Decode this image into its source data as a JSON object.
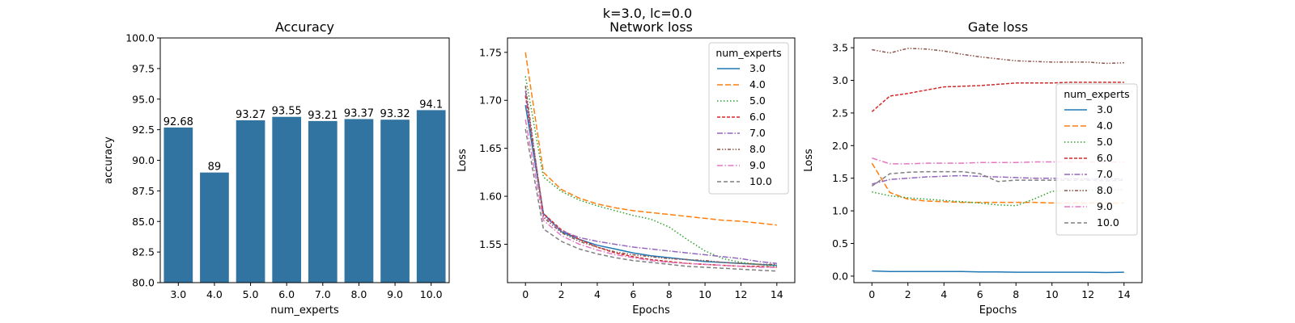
{
  "suptitle": "k=3.0, lc=0.0",
  "series_colors": {
    "3.0": "#1f77b4",
    "4.0": "#ff7f0e",
    "5.0": "#2ca02c",
    "6.0": "#d62728",
    "7.0": "#9467bd",
    "8.0": "#8c564b",
    "9.0": "#e377c2",
    "10.0": "#7f7f7f"
  },
  "bar_color": "#3274a1",
  "chart_data": [
    {
      "type": "bar",
      "title": "Accuracy",
      "xlabel": "num_experts",
      "ylabel": "accuracy",
      "ylim": [
        80,
        100
      ],
      "yticks": [
        "80.0",
        "82.5",
        "85.0",
        "87.5",
        "90.0",
        "92.5",
        "95.0",
        "97.5",
        "100.0"
      ],
      "categories": [
        "3.0",
        "4.0",
        "5.0",
        "6.0",
        "7.0",
        "8.0",
        "9.0",
        "10.0"
      ],
      "values": [
        92.68,
        89,
        93.27,
        93.55,
        93.21,
        93.37,
        93.32,
        94.1
      ],
      "data_labels": [
        "92.68",
        "89",
        "93.27",
        "93.55",
        "93.21",
        "93.37",
        "93.32",
        "94.1"
      ]
    },
    {
      "type": "line",
      "title": "Network loss",
      "xlabel": "Epochs",
      "ylabel": "Loss",
      "xlim": [
        -1,
        15
      ],
      "ylim": [
        1.51,
        1.765
      ],
      "xticks": [
        "0",
        "2",
        "4",
        "6",
        "8",
        "10",
        "12",
        "14"
      ],
      "yticks": [
        "1.55",
        "1.60",
        "1.65",
        "1.70",
        "1.75"
      ],
      "legend_title": "num_experts",
      "legend_position": "top-right",
      "x": [
        0,
        1,
        2,
        3,
        4,
        5,
        6,
        7,
        8,
        9,
        10,
        11,
        12,
        13,
        14
      ],
      "series": [
        {
          "name": "3.0",
          "values": [
            1.695,
            1.582,
            1.563,
            1.555,
            1.549,
            1.545,
            1.541,
            1.538,
            1.536,
            1.534,
            1.532,
            1.531,
            1.53,
            1.529,
            1.528
          ]
        },
        {
          "name": "4.0",
          "values": [
            1.75,
            1.625,
            1.607,
            1.598,
            1.592,
            1.588,
            1.585,
            1.583,
            1.581,
            1.579,
            1.577,
            1.575,
            1.574,
            1.572,
            1.57
          ]
        },
        {
          "name": "5.0",
          "values": [
            1.725,
            1.62,
            1.605,
            1.596,
            1.59,
            1.585,
            1.58,
            1.576,
            1.568,
            1.555,
            1.543,
            1.535,
            1.531,
            1.529,
            1.527
          ]
        },
        {
          "name": "6.0",
          "values": [
            1.705,
            1.582,
            1.565,
            1.555,
            1.547,
            1.541,
            1.537,
            1.534,
            1.532,
            1.53,
            1.529,
            1.528,
            1.527,
            1.527,
            1.526
          ]
        },
        {
          "name": "7.0",
          "values": [
            1.71,
            1.58,
            1.564,
            1.557,
            1.553,
            1.55,
            1.547,
            1.545,
            1.543,
            1.541,
            1.539,
            1.537,
            1.535,
            1.532,
            1.53
          ]
        },
        {
          "name": "8.0",
          "values": [
            1.715,
            1.578,
            1.562,
            1.553,
            1.547,
            1.542,
            1.539,
            1.537,
            1.535,
            1.534,
            1.533,
            1.531,
            1.53,
            1.529,
            1.529
          ]
        },
        {
          "name": "9.0",
          "values": [
            1.68,
            1.575,
            1.559,
            1.55,
            1.544,
            1.539,
            1.536,
            1.533,
            1.531,
            1.53,
            1.529,
            1.528,
            1.527,
            1.526,
            1.526
          ]
        },
        {
          "name": "10.0",
          "values": [
            1.67,
            1.566,
            1.553,
            1.545,
            1.54,
            1.536,
            1.533,
            1.531,
            1.529,
            1.527,
            1.526,
            1.525,
            1.524,
            1.523,
            1.522
          ]
        }
      ]
    },
    {
      "type": "line",
      "title": "Gate loss",
      "xlabel": "Epochs",
      "ylabel": "Loss",
      "xlim": [
        -1,
        15
      ],
      "ylim": [
        -0.1,
        3.65
      ],
      "xticks": [
        "0",
        "2",
        "4",
        "6",
        "8",
        "10",
        "12",
        "14"
      ],
      "yticks": [
        "0.0",
        "0.5",
        "1.0",
        "1.5",
        "2.0",
        "2.5",
        "3.0",
        "3.5"
      ],
      "legend_title": "num_experts",
      "legend_position": "center-right",
      "x": [
        0,
        1,
        2,
        3,
        4,
        5,
        6,
        7,
        8,
        9,
        10,
        11,
        12,
        13,
        14
      ],
      "series": [
        {
          "name": "3.0",
          "values": [
            0.08,
            0.07,
            0.07,
            0.07,
            0.07,
            0.07,
            0.065,
            0.065,
            0.06,
            0.06,
            0.06,
            0.06,
            0.06,
            0.055,
            0.06
          ]
        },
        {
          "name": "4.0",
          "values": [
            1.73,
            1.28,
            1.18,
            1.15,
            1.14,
            1.13,
            1.13,
            1.13,
            1.13,
            1.13,
            1.12,
            1.12,
            1.12,
            1.12,
            1.12
          ]
        },
        {
          "name": "5.0",
          "values": [
            1.29,
            1.23,
            1.2,
            1.18,
            1.16,
            1.14,
            1.12,
            1.09,
            1.08,
            1.18,
            1.3,
            1.31,
            1.32,
            1.32,
            1.33
          ]
        },
        {
          "name": "6.0",
          "values": [
            2.52,
            2.76,
            2.8,
            2.85,
            2.9,
            2.91,
            2.92,
            2.94,
            2.96,
            2.96,
            2.96,
            2.97,
            2.97,
            2.97,
            2.97
          ]
        },
        {
          "name": "7.0",
          "values": [
            1.41,
            1.48,
            1.5,
            1.52,
            1.53,
            1.54,
            1.53,
            1.52,
            1.51,
            1.5,
            1.5,
            1.49,
            1.49,
            1.49,
            1.49
          ]
        },
        {
          "name": "8.0",
          "values": [
            3.47,
            3.42,
            3.49,
            3.48,
            3.45,
            3.4,
            3.36,
            3.33,
            3.3,
            3.29,
            3.28,
            3.28,
            3.28,
            3.26,
            3.27
          ]
        },
        {
          "name": "9.0",
          "values": [
            1.81,
            1.72,
            1.72,
            1.73,
            1.73,
            1.73,
            1.74,
            1.74,
            1.74,
            1.75,
            1.75,
            1.75,
            1.75,
            1.75,
            1.75
          ]
        },
        {
          "name": "10.0",
          "values": [
            1.38,
            1.57,
            1.59,
            1.6,
            1.6,
            1.6,
            1.57,
            1.45,
            1.47,
            1.47,
            1.47,
            1.47,
            1.47,
            1.46,
            1.47
          ]
        }
      ]
    }
  ]
}
